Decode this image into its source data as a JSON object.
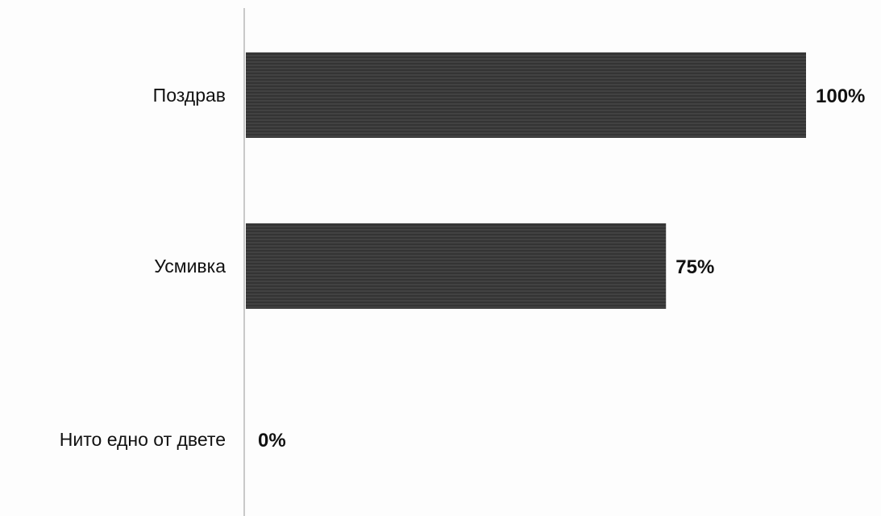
{
  "chart_data": {
    "type": "bar",
    "orientation": "horizontal",
    "categories": [
      "Поздрав",
      "Усмивка",
      "Нито едно от двете"
    ],
    "values": [
      100,
      75,
      0
    ],
    "value_labels": [
      "100%",
      "75%",
      "0%"
    ],
    "unit": "%",
    "xlim": [
      0,
      100
    ],
    "grid": false,
    "legend": "none",
    "bar_color": "#3a3a3a",
    "axis_color": "#b8b8b8"
  }
}
